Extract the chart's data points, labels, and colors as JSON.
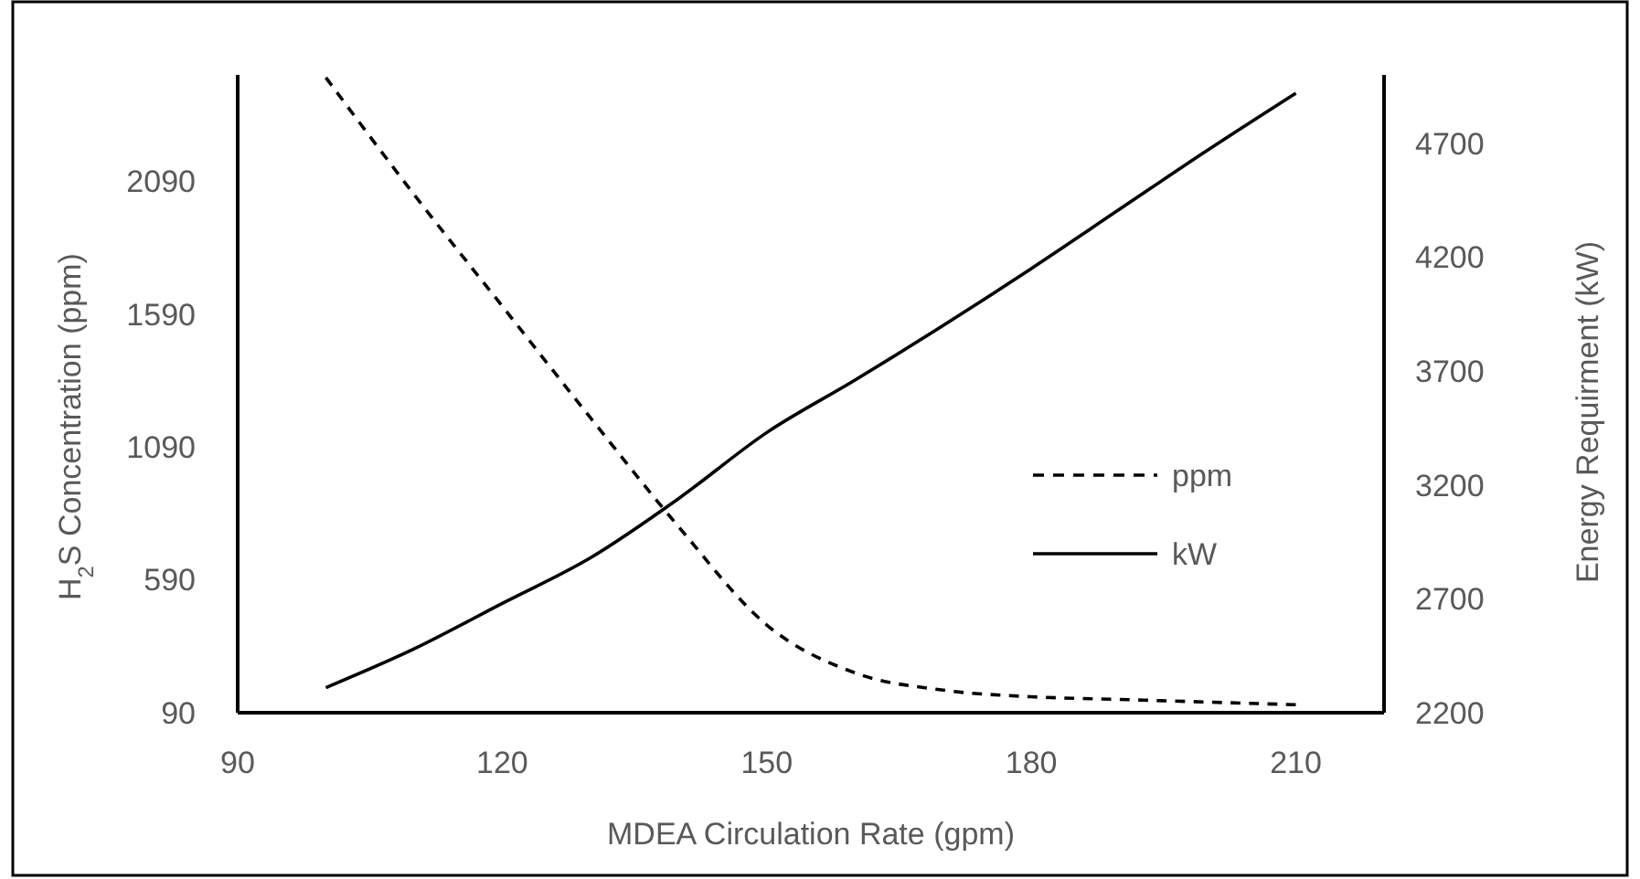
{
  "chart_data": {
    "type": "line",
    "xlabel": "MDEA Circulation Rate (gpm)",
    "ylabel": "H$_{2}$S Concentration (ppm)",
    "y2label": "Energy Requirment (kW)",
    "x": [
      100,
      110,
      120,
      130,
      140,
      150,
      160,
      170,
      180,
      190,
      200,
      210
    ],
    "series": [
      {
        "name": "ppm",
        "color": "#000000",
        "line_style": "dashed",
        "values": [
          2480,
          2040,
          1620,
          1200,
          790,
          420,
          240,
          175,
          150,
          140,
          130,
          120
        ]
      },
      {
        "name": "kW",
        "color": "#000000",
        "line_style": "solid",
        "axis": "y2",
        "values": [
          2310,
          2480,
          2680,
          2880,
          3140,
          3430,
          3660,
          3900,
          4150,
          4410,
          4670,
          4920
        ]
      }
    ],
    "xlim": [
      90,
      220
    ],
    "xticks": [
      90,
      120,
      150,
      180,
      210
    ],
    "ylim": [
      90,
      2490
    ],
    "yticks": [
      90,
      590,
      1090,
      1590,
      2090
    ],
    "y2lim": [
      2200,
      5000
    ],
    "y2ticks": [
      2200,
      2700,
      3200,
      3700,
      4200,
      4700
    ],
    "grid": false,
    "legend": "right",
    "marker": "none"
  }
}
